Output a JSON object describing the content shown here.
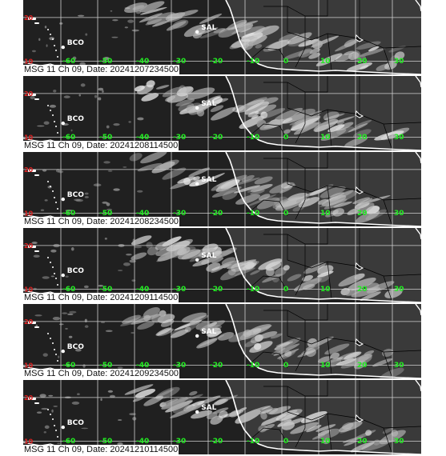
{
  "panels": [
    {
      "caption": "MSG 11 Ch 09, Date: 20241207234500"
    },
    {
      "caption": "MSG 11 Ch 09, Date: 20241208114500"
    },
    {
      "caption": "MSG 11 Ch 09, Date: 20241208234500"
    },
    {
      "caption": "MSG 11 Ch 09, Date: 20241209114500"
    },
    {
      "caption": "MSG 11 Ch 09, Date: 20241209234500"
    },
    {
      "caption": "MSG 11 Ch 09, Date: 20241210114500"
    }
  ],
  "stations": [
    {
      "name": "SAL",
      "lon": -23,
      "lat": 16.7
    },
    {
      "name": "BCO",
      "lon": -59.4,
      "lat": 13.2
    }
  ],
  "longitude_labels": [
    "-60",
    "-50",
    "-40",
    "-30",
    "-20",
    "-10",
    "0",
    "10",
    "20",
    "30"
  ],
  "latitude_labels": [
    "20",
    "10"
  ],
  "colors": {
    "background": "#202020",
    "grid": "#cfcfcf",
    "coastline": "#ffffff",
    "border": "#000000",
    "longitude_label": "#22ee22",
    "latitude_label": "#dd2222",
    "station": "#ffffff"
  }
}
